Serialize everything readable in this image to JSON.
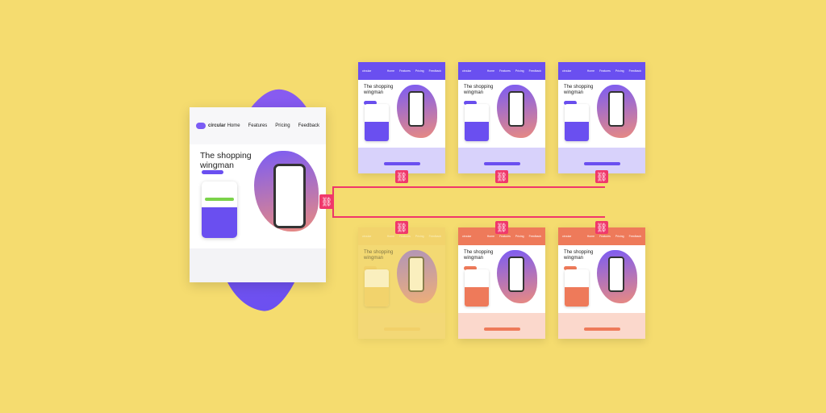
{
  "brand": "circular",
  "nav": [
    "Home",
    "Features",
    "Pricing",
    "Feedback"
  ],
  "headline": "The shopping wingman",
  "colors": {
    "background": "#f5dc6f",
    "purple": "#6a4ff0",
    "orange": "#ee7a5a",
    "link": "#f0386b",
    "faded": "#f2d472"
  },
  "variants": [
    {
      "theme": "purple"
    },
    {
      "theme": "purple"
    },
    {
      "theme": "purple"
    },
    {
      "theme": "faded"
    },
    {
      "theme": "orange"
    },
    {
      "theme": "orange"
    }
  ],
  "link_icon": "chain-link-icon"
}
